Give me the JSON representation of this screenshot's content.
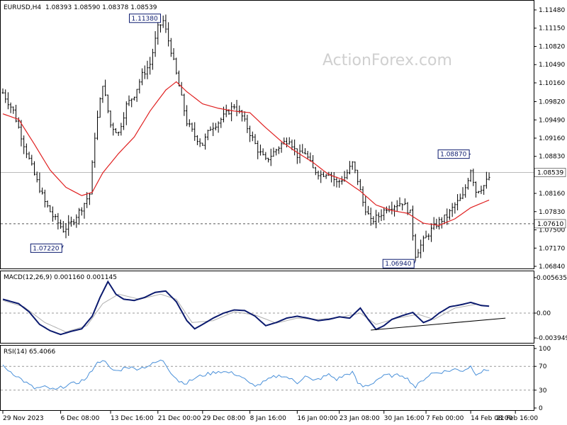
{
  "header": {
    "symbol": "EURUSD,H4",
    "ohlc": "1.08393 1.08590 1.08378 1.08539"
  },
  "watermark": "ActionForex.com",
  "chart_data": [
    {
      "type": "candlestick",
      "title": "EURUSD,H4",
      "y_ticks": [
        "1.11480",
        "1.11150",
        "1.10820",
        "1.10490",
        "1.10160",
        "1.09820",
        "1.09490",
        "1.09160",
        "1.08830",
        "1.08500",
        "1.08160",
        "1.07830",
        "1.07500",
        "1.07170",
        "1.06840"
      ],
      "y_tick_labels": [
        "1.11480",
        "1.11150",
        "1.10820",
        "1.10490",
        "1.10160",
        "1.09820",
        "1.09490",
        "1.09160",
        "1.08830",
        "1.08500",
        "1.08160",
        "1.07830",
        "1.07500",
        "1.07170",
        "1.06840"
      ],
      "ylim": [
        1.0684,
        1.1148
      ],
      "current_price": "1.08539",
      "current_price_value": 1.08539,
      "support_line": "1.07610",
      "support_line_value": 1.0761,
      "annotations": [
        {
          "text": "1.11380",
          "value": 1.1138,
          "x_index": 60
        },
        {
          "text": "1.07220",
          "value": 1.0722,
          "x_index": 23
        },
        {
          "text": "1.06940",
          "value": 1.0694,
          "x_index": 157
        },
        {
          "text": "1.08870",
          "value": 1.0887,
          "x_index": 178
        }
      ],
      "price_path": [
        [
          0,
          1.0998
        ],
        [
          4,
          1.0965
        ],
        [
          8,
          1.0905
        ],
        [
          12,
          1.085
        ],
        [
          16,
          1.08
        ],
        [
          19,
          1.0775
        ],
        [
          23,
          1.075
        ],
        [
          26,
          1.0762
        ],
        [
          30,
          1.079
        ],
        [
          33,
          1.0815
        ],
        [
          35,
          1.092
        ],
        [
          38,
          1.1015
        ],
        [
          41,
          1.094
        ],
        [
          44,
          1.0925
        ],
        [
          47,
          1.0975
        ],
        [
          50,
          1.0995
        ],
        [
          53,
          1.103
        ],
        [
          56,
          1.105
        ],
        [
          59,
          1.1115
        ],
        [
          61,
          1.1128
        ],
        [
          64,
          1.1075
        ],
        [
          67,
          1.101
        ],
        [
          70,
          1.0945
        ],
        [
          73,
          1.092
        ],
        [
          76,
          1.0905
        ],
        [
          79,
          1.0935
        ],
        [
          82,
          1.0945
        ],
        [
          85,
          1.096
        ],
        [
          88,
          1.0975
        ],
        [
          91,
          1.0955
        ],
        [
          94,
          1.0925
        ],
        [
          97,
          1.0895
        ],
        [
          100,
          1.0875
        ],
        [
          103,
          1.089
        ],
        [
          106,
          1.0905
        ],
        [
          109,
          1.0915
        ],
        [
          112,
          1.0885
        ],
        [
          115,
          1.089
        ],
        [
          118,
          1.086
        ],
        [
          121,
          1.085
        ],
        [
          124,
          1.0855
        ],
        [
          127,
          1.0835
        ],
        [
          130,
          1.0845
        ],
        [
          133,
          1.087
        ],
        [
          135,
          1.084
        ],
        [
          137,
          1.08
        ],
        [
          140,
          1.0765
        ],
        [
          143,
          1.0775
        ],
        [
          146,
          1.079
        ],
        [
          149,
          1.0795
        ],
        [
          152,
          1.08
        ],
        [
          155,
          1.078
        ],
        [
          157,
          1.0705
        ],
        [
          160,
          1.073
        ],
        [
          163,
          1.075
        ],
        [
          166,
          1.0765
        ],
        [
          169,
          1.0775
        ],
        [
          172,
          1.0795
        ],
        [
          175,
          1.081
        ],
        [
          178,
          1.086
        ],
        [
          180,
          1.082
        ],
        [
          183,
          1.083
        ],
        [
          185,
          1.0845
        ]
      ],
      "ma_path": [
        [
          0,
          1.096
        ],
        [
          6,
          1.095
        ],
        [
          12,
          1.0905
        ],
        [
          18,
          1.0858
        ],
        [
          24,
          1.0827
        ],
        [
          30,
          1.0812
        ],
        [
          34,
          1.0818
        ],
        [
          38,
          1.0853
        ],
        [
          44,
          1.0888
        ],
        [
          50,
          1.0918
        ],
        [
          56,
          1.0965
        ],
        [
          62,
          1.1003
        ],
        [
          66,
          1.1018
        ],
        [
          70,
          1.1
        ],
        [
          76,
          1.0978
        ],
        [
          82,
          1.097
        ],
        [
          88,
          1.0965
        ],
        [
          94,
          1.0962
        ],
        [
          100,
          1.0935
        ],
        [
          106,
          1.091
        ],
        [
          112,
          1.089
        ],
        [
          118,
          1.0872
        ],
        [
          124,
          1.085
        ],
        [
          130,
          1.084
        ],
        [
          136,
          1.082
        ],
        [
          142,
          1.0795
        ],
        [
          148,
          1.0785
        ],
        [
          154,
          1.078
        ],
        [
          160,
          1.0762
        ],
        [
          166,
          1.0758
        ],
        [
          172,
          1.077
        ],
        [
          178,
          1.079
        ],
        [
          185,
          1.0804
        ]
      ],
      "x_count": 186
    },
    {
      "type": "line",
      "title": "MACD(12,26,9) 0.001160 0.001145",
      "y_tick_labels": [
        "0.005635",
        "0.00",
        "-0.003949"
      ],
      "y_ticks_values": [
        0.005635,
        0.0,
        -0.003949
      ],
      "ylim": [
        -0.0045,
        0.0063
      ],
      "series": [
        {
          "name": "MACD",
          "color": "#0b1a6e",
          "points": [
            [
              0,
              0.0022
            ],
            [
              6,
              0.0015
            ],
            [
              10,
              0.0002
            ],
            [
              14,
              -0.0018
            ],
            [
              18,
              -0.0028
            ],
            [
              22,
              -0.0034
            ],
            [
              26,
              -0.0029
            ],
            [
              30,
              -0.0025
            ],
            [
              34,
              -0.0005
            ],
            [
              37,
              0.0025
            ],
            [
              40,
              0.005
            ],
            [
              43,
              0.003
            ],
            [
              46,
              0.0022
            ],
            [
              50,
              0.002
            ],
            [
              54,
              0.0025
            ],
            [
              58,
              0.0033
            ],
            [
              62,
              0.0035
            ],
            [
              66,
              0.0018
            ],
            [
              70,
              -0.0012
            ],
            [
              73,
              -0.0025
            ],
            [
              76,
              -0.0018
            ],
            [
              80,
              -0.0008
            ],
            [
              84,
              0.0
            ],
            [
              88,
              0.0005
            ],
            [
              92,
              0.0004
            ],
            [
              96,
              -0.0005
            ],
            [
              100,
              -0.002
            ],
            [
              104,
              -0.0015
            ],
            [
              108,
              -0.0008
            ],
            [
              112,
              -0.0005
            ],
            [
              116,
              -0.0008
            ],
            [
              120,
              -0.0012
            ],
            [
              124,
              -0.001
            ],
            [
              128,
              -0.0006
            ],
            [
              132,
              -0.0008
            ],
            [
              136,
              0.0008
            ],
            [
              139,
              -0.001
            ],
            [
              142,
              -0.0026
            ],
            [
              145,
              -0.002
            ],
            [
              148,
              -0.001
            ],
            [
              152,
              -0.0004
            ],
            [
              156,
              0.0001
            ],
            [
              160,
              -0.0015
            ],
            [
              163,
              -0.001
            ],
            [
              166,
              0.0
            ],
            [
              170,
              0.001
            ],
            [
              174,
              0.0013
            ],
            [
              178,
              0.0017
            ],
            [
              182,
              0.0012
            ],
            [
              185,
              0.0011
            ]
          ]
        },
        {
          "name": "Signal",
          "color": "#b0b0b0",
          "points": [
            [
              0,
              0.002
            ],
            [
              8,
              0.001
            ],
            [
              16,
              -0.0015
            ],
            [
              24,
              -0.003
            ],
            [
              32,
              -0.002
            ],
            [
              38,
              0.0015
            ],
            [
              44,
              0.003
            ],
            [
              52,
              0.0022
            ],
            [
              60,
              0.003
            ],
            [
              66,
              0.0022
            ],
            [
              72,
              -0.0015
            ],
            [
              80,
              -0.0012
            ],
            [
              88,
              0.0002
            ],
            [
              96,
              -0.0003
            ],
            [
              104,
              -0.0016
            ],
            [
              112,
              -0.0008
            ],
            [
              120,
              -0.001
            ],
            [
              128,
              -0.0007
            ],
            [
              136,
              0.0
            ],
            [
              142,
              -0.0018
            ],
            [
              150,
              -0.0008
            ],
            [
              158,
              -0.0002
            ],
            [
              164,
              -0.001
            ],
            [
              172,
              0.0008
            ],
            [
              180,
              0.0014
            ],
            [
              185,
              0.0011
            ]
          ]
        }
      ],
      "trendline": [
        [
          140,
          -0.0027
        ],
        [
          188,
          -0.0008
        ]
      ]
    },
    {
      "type": "line",
      "title": "RSI(14) 65.4066",
      "y_tick_labels": [
        "100",
        "70",
        "30",
        "0"
      ],
      "y_ticks_values": [
        100,
        70,
        30,
        0
      ],
      "ylim": [
        0,
        100
      ],
      "series": [
        {
          "name": "RSI",
          "color": "#4a90d9",
          "points": [
            [
              0,
              70
            ],
            [
              4,
              58
            ],
            [
              8,
              45
            ],
            [
              12,
              33
            ],
            [
              16,
              35
            ],
            [
              20,
              30
            ],
            [
              24,
              38
            ],
            [
              28,
              42
            ],
            [
              32,
              50
            ],
            [
              35,
              72
            ],
            [
              38,
              82
            ],
            [
              41,
              65
            ],
            [
              44,
              62
            ],
            [
              47,
              70
            ],
            [
              50,
              66
            ],
            [
              53,
              68
            ],
            [
              56,
              72
            ],
            [
              59,
              78
            ],
            [
              61,
              80
            ],
            [
              64,
              60
            ],
            [
              67,
              45
            ],
            [
              70,
              42
            ],
            [
              73,
              50
            ],
            [
              76,
              55
            ],
            [
              79,
              58
            ],
            [
              82,
              62
            ],
            [
              85,
              60
            ],
            [
              88,
              58
            ],
            [
              91,
              52
            ],
            [
              94,
              40
            ],
            [
              97,
              38
            ],
            [
              100,
              45
            ],
            [
              103,
              52
            ],
            [
              106,
              55
            ],
            [
              109,
              50
            ],
            [
              112,
              42
            ],
            [
              115,
              55
            ],
            [
              118,
              45
            ],
            [
              121,
              50
            ],
            [
              124,
              56
            ],
            [
              127,
              48
            ],
            [
              130,
              55
            ],
            [
              133,
              60
            ],
            [
              135,
              42
            ],
            [
              137,
              36
            ],
            [
              140,
              40
            ],
            [
              143,
              50
            ],
            [
              146,
              55
            ],
            [
              149,
              54
            ],
            [
              152,
              56
            ],
            [
              155,
              45
            ],
            [
              157,
              35
            ],
            [
              160,
              48
            ],
            [
              163,
              58
            ],
            [
              166,
              60
            ],
            [
              169,
              62
            ],
            [
              172,
              65
            ],
            [
              175,
              63
            ],
            [
              178,
              70
            ],
            [
              180,
              58
            ],
            [
              183,
              62
            ],
            [
              185,
              65
            ]
          ]
        }
      ]
    }
  ],
  "x_axis": {
    "labels": [
      {
        "text": "29 Nov 2023",
        "index": 0
      },
      {
        "text": "6 Dec 08:00",
        "index": 22
      },
      {
        "text": "13 Dec 16:00",
        "index": 41
      },
      {
        "text": "21 Dec 00:00",
        "index": 59
      },
      {
        "text": "29 Dec 08:00",
        "index": 76
      },
      {
        "text": "8 Jan 16:00",
        "index": 94
      },
      {
        "text": "16 Jan 00:00",
        "index": 112
      },
      {
        "text": "23 Jan 08:00",
        "index": 128
      },
      {
        "text": "30 Jan 16:00",
        "index": 145
      },
      {
        "text": "7 Feb 00:00",
        "index": 161
      },
      {
        "text": "14 Feb 08:00",
        "index": 178
      },
      {
        "text": "21 Feb 16:00",
        "index": 195
      }
    ]
  },
  "colors": {
    "candle": "#000000",
    "ma": "#e02020",
    "macd": "#0b1a6e",
    "signal": "#b0b0b0",
    "rsi": "#4a90d9",
    "grid": "#999999",
    "frame": "#000000",
    "annotation_bg": "#ffffff",
    "annotation_border": "#0b1a6e"
  }
}
